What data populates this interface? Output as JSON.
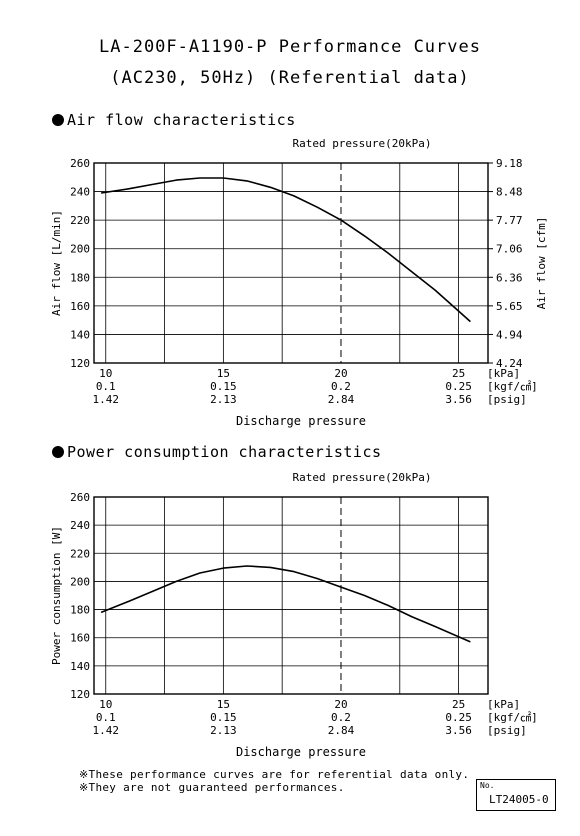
{
  "title_line1": "LA-200F-A1190-P Performance Curves",
  "title_line2": "(AC230, 50Hz) (Referential data)",
  "section1_title": "Air flow characteristics",
  "section2_title": "Power consumption characteristics",
  "notes": [
    "※These performance curves are for referential data only.",
    "※They are not guaranteed performances."
  ],
  "doc_number_label": "No.",
  "doc_number": "LT24005-0",
  "chart_data": [
    {
      "type": "line",
      "title": "Air flow characteristics",
      "annotation": "Rated pressure(20kPa)",
      "rated_pressure_kpa": 20,
      "xlabel": "Discharge pressure",
      "ylabel": "Air flow [L/min]",
      "ylabel_right": "Air flow [cfm]",
      "xlim": [
        9.5,
        26.25
      ],
      "ylim": [
        120,
        260
      ],
      "grid": true,
      "x_gridlines": [
        10,
        12.5,
        15,
        17.5,
        20,
        22.5,
        25
      ],
      "y_ticks": [
        120,
        140,
        160,
        180,
        200,
        220,
        240,
        260
      ],
      "y2_ticks": [
        "9.18",
        "8.48",
        "7.77",
        "7.06",
        "6.36",
        "5.65",
        "4.94",
        "4.24"
      ],
      "x_tick_positions": [
        10,
        15,
        20,
        25
      ],
      "x_tick_labels_kpa": [
        "10",
        "15",
        "20",
        "25"
      ],
      "x_tick_labels_kgf": [
        "0.1",
        "0.15",
        "0.2",
        "0.25"
      ],
      "x_tick_labels_psig": [
        "1.42",
        "2.13",
        "2.84",
        "3.56"
      ],
      "unit_kpa": "[kPa]",
      "unit_kgf": "[kgf/㎠]",
      "unit_psig": "[psig]",
      "series": [
        {
          "x": [
            9.8,
            11,
            12,
            13,
            14,
            15,
            16,
            17,
            18,
            19,
            20,
            21,
            22,
            23,
            24,
            25.5
          ],
          "y": [
            239,
            242,
            245,
            248,
            249.5,
            249.5,
            247.5,
            243,
            237,
            229,
            220,
            209,
            197,
            184,
            171,
            149
          ]
        }
      ]
    },
    {
      "type": "line",
      "title": "Power consumption characteristics",
      "annotation": "Rated pressure(20kPa)",
      "rated_pressure_kpa": 20,
      "xlabel": "Discharge pressure",
      "ylabel": "Power consumption [W]",
      "xlim": [
        9.5,
        26.25
      ],
      "ylim": [
        120,
        260
      ],
      "grid": true,
      "x_gridlines": [
        10,
        12.5,
        15,
        17.5,
        20,
        22.5,
        25
      ],
      "y_ticks": [
        120,
        140,
        160,
        180,
        200,
        220,
        240,
        260
      ],
      "x_tick_positions": [
        10,
        15,
        20,
        25
      ],
      "x_tick_labels_kpa": [
        "10",
        "15",
        "20",
        "25"
      ],
      "x_tick_labels_kgf": [
        "0.1",
        "0.15",
        "0.2",
        "0.25"
      ],
      "x_tick_labels_psig": [
        "1.42",
        "2.13",
        "2.84",
        "3.56"
      ],
      "unit_kpa": "[kPa]",
      "unit_kgf": "[kgf/㎠]",
      "unit_psig": "[psig]",
      "series": [
        {
          "x": [
            9.8,
            11,
            12,
            13,
            14,
            15,
            16,
            17,
            18,
            19,
            20,
            21,
            22,
            23,
            24,
            25.5
          ],
          "y": [
            178,
            186,
            193,
            200,
            206,
            209.5,
            211,
            210,
            207,
            202,
            196,
            190,
            183,
            175,
            168,
            157
          ]
        }
      ]
    }
  ]
}
